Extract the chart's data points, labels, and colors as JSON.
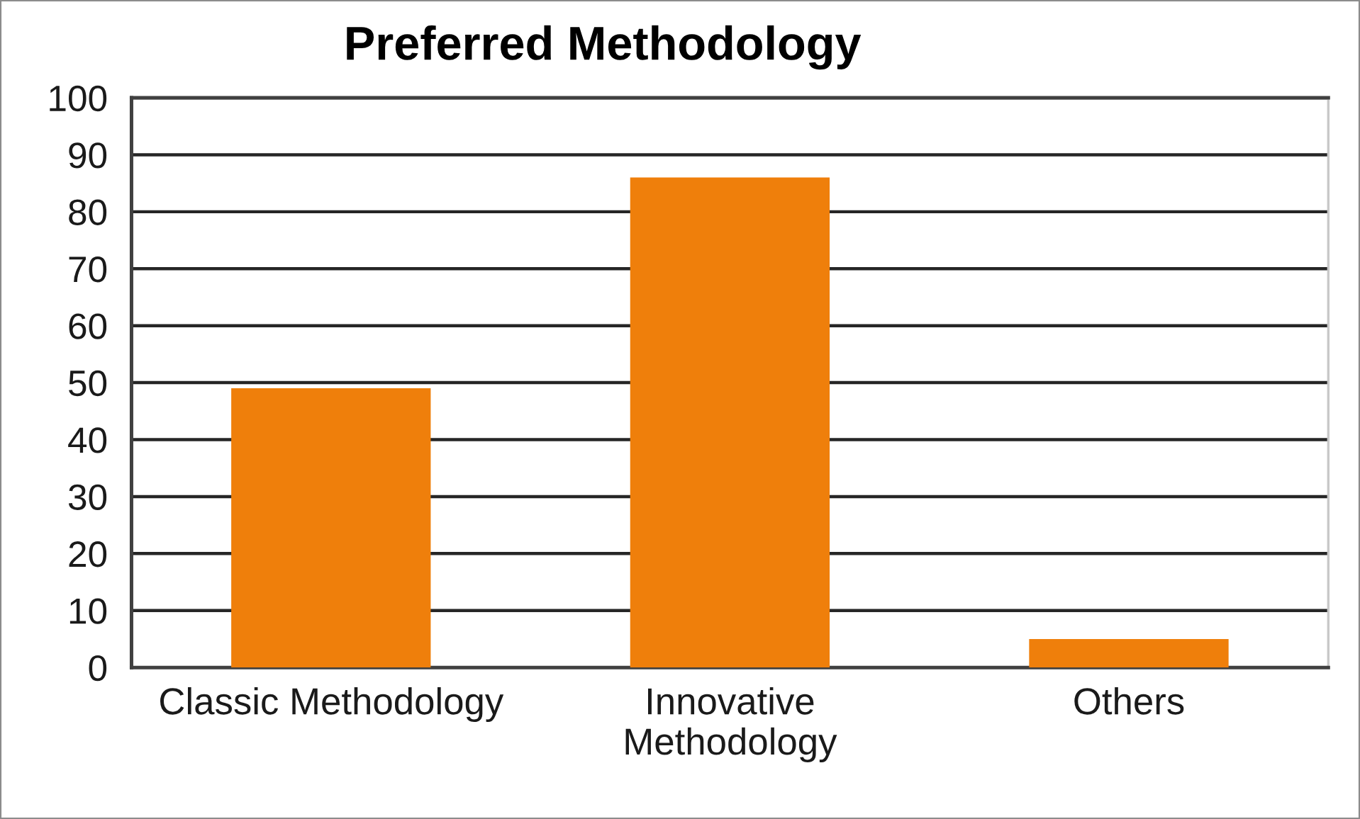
{
  "chart_data": {
    "type": "bar",
    "title": "Preferred Methodology",
    "categories": [
      "Classic Methodology",
      "Innovative\nMethodology",
      "Others"
    ],
    "values": [
      49,
      86,
      5
    ],
    "color": "#ef7f0b",
    "ylim": [
      0,
      100
    ],
    "yticks": [
      0,
      10,
      20,
      30,
      40,
      50,
      60,
      70,
      80,
      90,
      100
    ],
    "grid": "y",
    "legend": false
  }
}
